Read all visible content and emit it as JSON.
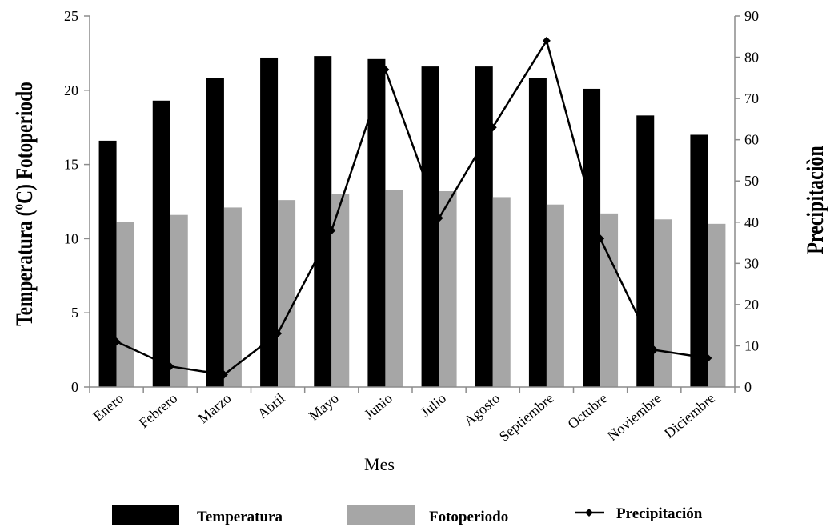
{
  "chart_data": {
    "type": "bar",
    "categories": [
      "Enero",
      "Febrero",
      "Marzo",
      "Abril",
      "Mayo",
      "Junio",
      "Julio",
      "Agosto",
      "Septiembre",
      "Octubre",
      "Noviembre",
      "Diciembre"
    ],
    "series": [
      {
        "name": "Temperatura",
        "type": "bar",
        "axis": "left",
        "color": "#000000",
        "values": [
          16.6,
          19.3,
          20.8,
          22.2,
          22.3,
          22.1,
          21.6,
          21.6,
          20.8,
          20.1,
          18.3,
          17.0
        ]
      },
      {
        "name": "Fotoperiodo",
        "type": "bar",
        "axis": "left",
        "color": "#a6a6a6",
        "values": [
          11.1,
          11.6,
          12.1,
          12.6,
          13.0,
          13.3,
          13.2,
          12.8,
          12.3,
          11.7,
          11.3,
          11.0
        ]
      },
      {
        "name": "Precipitación",
        "type": "line",
        "axis": "right",
        "color": "#000000",
        "marker": "diamond",
        "values": [
          11,
          5,
          3,
          13,
          38,
          77,
          41,
          63,
          84,
          36,
          9,
          7
        ]
      }
    ],
    "xlabel": "Mes",
    "ylabel": "Temperatura (ºC) Fotoperiodo",
    "y2label": "Precipitaciòn",
    "ylim": [
      0,
      25
    ],
    "yticks": [
      "0",
      "5",
      "10",
      "15",
      "20",
      "25"
    ],
    "y2lim": [
      0,
      90
    ],
    "y2ticks": [
      "0",
      "10",
      "20",
      "30",
      "40",
      "50",
      "60",
      "70",
      "80",
      "90"
    ],
    "grid": false,
    "legend_position": "bottom"
  }
}
